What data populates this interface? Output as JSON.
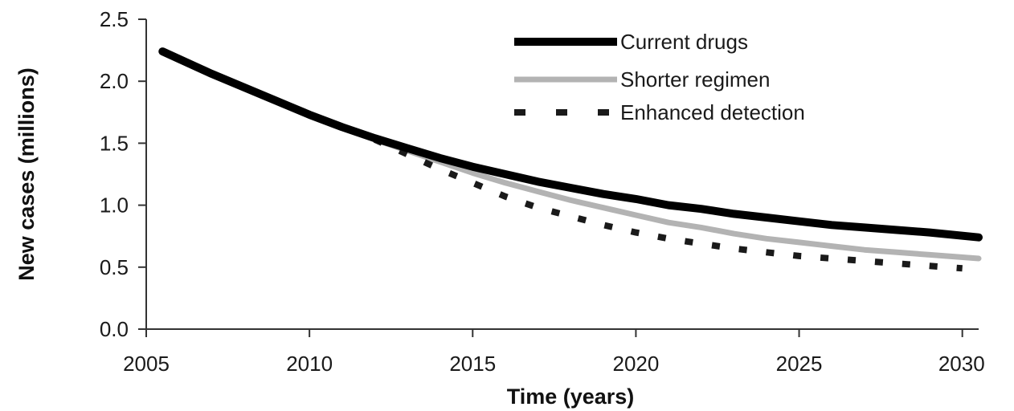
{
  "chart_data": {
    "type": "line",
    "title": "",
    "xlabel": "Time (years)",
    "ylabel": "New cases (millions)",
    "xlim": [
      2005,
      2030.5
    ],
    "ylim": [
      0,
      2.5
    ],
    "xticks": [
      2005,
      2010,
      2015,
      2020,
      2025,
      2030
    ],
    "xtick_labels": [
      "2005",
      "2010",
      "2015",
      "2020",
      "2025",
      "2030"
    ],
    "yticks": [
      0,
      0.5,
      1.0,
      1.5,
      2.0,
      2.5
    ],
    "ytick_labels": [
      "0.0",
      "0.5",
      "1.0",
      "1.5",
      "2.0",
      "2.5"
    ],
    "grid": false,
    "legend_position": "top-right",
    "series": [
      {
        "name": "Current drugs",
        "color": "#000000",
        "style": "solid-thick",
        "x": [
          2005.5,
          2007,
          2008,
          2009,
          2010,
          2011,
          2012,
          2013,
          2014,
          2015,
          2016,
          2017,
          2018,
          2019,
          2020,
          2021,
          2022,
          2023,
          2024,
          2025,
          2026,
          2027,
          2028,
          2029,
          2030.5
        ],
        "y": [
          2.24,
          2.06,
          1.95,
          1.84,
          1.73,
          1.63,
          1.54,
          1.46,
          1.38,
          1.31,
          1.25,
          1.19,
          1.14,
          1.09,
          1.05,
          1.0,
          0.97,
          0.93,
          0.9,
          0.87,
          0.84,
          0.82,
          0.8,
          0.78,
          0.74
        ]
      },
      {
        "name": "Shorter regimen",
        "color": "#b3b3b3",
        "style": "solid",
        "x": [
          2012,
          2013,
          2014,
          2015,
          2016,
          2017,
          2018,
          2019,
          2020,
          2021,
          2022,
          2023,
          2024,
          2025,
          2026,
          2027,
          2028,
          2029,
          2030.5
        ],
        "y": [
          1.53,
          1.44,
          1.35,
          1.26,
          1.18,
          1.11,
          1.04,
          0.98,
          0.92,
          0.86,
          0.82,
          0.77,
          0.73,
          0.7,
          0.67,
          0.64,
          0.62,
          0.6,
          0.57
        ]
      },
      {
        "name": "Enhanced detection",
        "color": "#1a1a1a",
        "style": "dashed",
        "x": [
          2012,
          2013,
          2014,
          2015,
          2016,
          2017,
          2018,
          2019,
          2020,
          2021,
          2022,
          2023,
          2024,
          2025,
          2026,
          2027,
          2028,
          2029,
          2030
        ],
        "y": [
          1.53,
          1.41,
          1.29,
          1.18,
          1.07,
          0.98,
          0.91,
          0.84,
          0.78,
          0.73,
          0.69,
          0.65,
          0.62,
          0.59,
          0.57,
          0.55,
          0.53,
          0.51,
          0.49
        ]
      }
    ]
  }
}
